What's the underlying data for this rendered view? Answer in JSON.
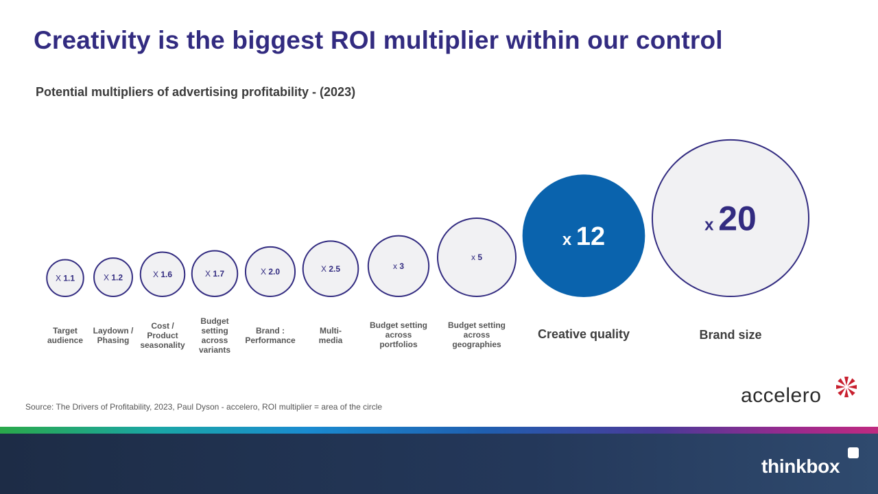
{
  "title": "Creativity is the biggest ROI multiplier within our control",
  "subtitle": "Potential multipliers of advertising profitability  - (2023)",
  "source": "Source: The Drivers of Profitability, 2023, Paul Dyson - accelero, ROI multiplier = area of the circle",
  "brand": {
    "partner": "accelero",
    "footer": "thinkbox"
  },
  "colors": {
    "title": "#322b80",
    "outline": "#322b80",
    "circle_fill": "#f1f1f3",
    "highlight": "#0a63ad",
    "label": "#555555"
  },
  "chart_data": {
    "type": "bubble",
    "encoding": "ROI multiplier = area of the circle",
    "items": [
      {
        "prefix": "X",
        "value_label": "1.1",
        "value": 1.1,
        "label": [
          "Target",
          "audience"
        ],
        "highlight": false
      },
      {
        "prefix": "X",
        "value_label": "1.2",
        "value": 1.2,
        "label": [
          "Laydown /",
          "Phasing"
        ],
        "highlight": false
      },
      {
        "prefix": "X",
        "value_label": "1.6",
        "value": 1.6,
        "label": [
          "Cost /",
          "Product",
          "seasonality"
        ],
        "highlight": false
      },
      {
        "prefix": "X",
        "value_label": "1.7",
        "value": 1.7,
        "label": [
          "Budget",
          "setting",
          "across",
          "variants"
        ],
        "highlight": false
      },
      {
        "prefix": "X",
        "value_label": "2.0",
        "value": 2.0,
        "label": [
          "Brand :",
          "Performance"
        ],
        "highlight": false
      },
      {
        "prefix": "X",
        "value_label": "2.5",
        "value": 2.5,
        "label": [
          "Multi-",
          "media"
        ],
        "highlight": false
      },
      {
        "prefix": "x",
        "value_label": "3",
        "value": 3,
        "label": [
          "Budget setting",
          "across",
          "portfolios"
        ],
        "highlight": false
      },
      {
        "prefix": "x",
        "value_label": "5",
        "value": 5,
        "label": [
          "Budget setting",
          "across",
          "geographies"
        ],
        "highlight": false
      },
      {
        "prefix": "x",
        "value_label": "12",
        "value": 12,
        "label": [
          "Creative quality"
        ],
        "highlight": true
      },
      {
        "prefix": "x",
        "value_label": "20",
        "value": 20,
        "label": [
          "Brand size"
        ],
        "highlight": false
      }
    ]
  }
}
